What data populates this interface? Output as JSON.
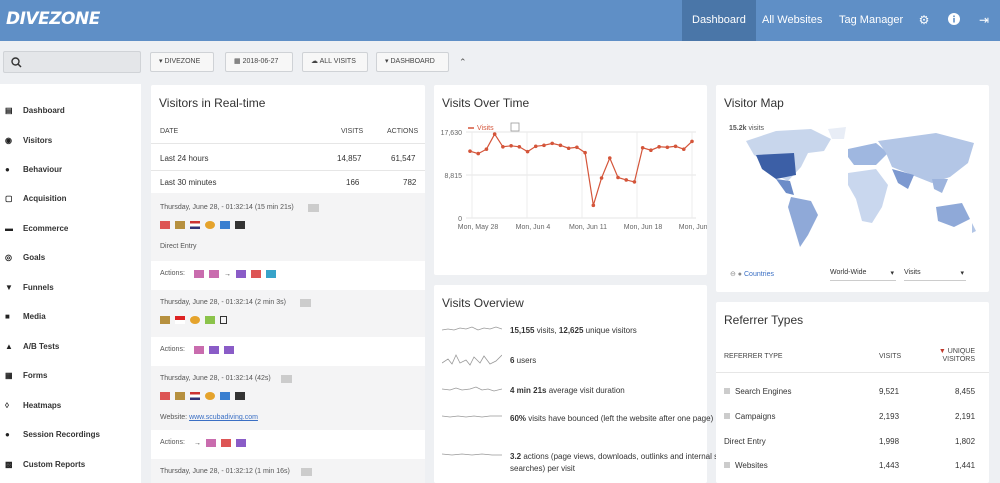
{
  "top": {
    "logo": "DIVEZONE",
    "nav": [
      "Dashboard",
      "All Websites",
      "Tag Manager"
    ],
    "icons": [
      "gear-icon",
      "info-icon",
      "logout-icon"
    ]
  },
  "filters": {
    "site": "DIVEZONE",
    "date": "2018-06-27",
    "segment": "ALL VISITS",
    "view": "DASHBOARD"
  },
  "sidebar": [
    "Dashboard",
    "Visitors",
    "Behaviour",
    "Acquisition",
    "Ecommerce",
    "Goals",
    "Funnels",
    "Media",
    "A/B Tests",
    "Forms",
    "Heatmaps",
    "Session Recordings",
    "Custom Reports"
  ],
  "realtime": {
    "title": "Visitors in Real-time",
    "h_date": "DATE",
    "h_visits": "VISITS",
    "h_actions": "ACTIONS",
    "rows": [
      {
        "date": "Last 24 hours",
        "visits": "14,857",
        "actions": "61,547"
      },
      {
        "date": "Last 30 minutes",
        "visits": "166",
        "actions": "782"
      }
    ],
    "visits": [
      {
        "time": "Thursday, June 28, - 01:32:14 (15 min 21s)",
        "ref": "Direct Entry",
        "actions": "Actions:"
      },
      {
        "time": "Thursday, June 28, - 01:32:14 (2 min 3s)",
        "actions": "Actions:"
      },
      {
        "time": "Thursday, June 28, - 01:32:14 (42s)",
        "ref_prefix": "Website:",
        "ref_link": "www.scubadiving.com",
        "actions": "Actions:"
      },
      {
        "time": "Thursday, June 28, - 01:32:12 (1 min 16s)"
      }
    ]
  },
  "vot": {
    "title": "Visits Over Time",
    "legend": "Visits"
  },
  "chart_data": {
    "type": "line",
    "title": "Visits Over Time",
    "series": [
      {
        "name": "Visits",
        "values": [
          13700,
          13200,
          14100,
          17200,
          14600,
          14800,
          14600,
          13600,
          14700,
          14900,
          15300,
          14900,
          14300,
          14500,
          13400,
          2600,
          8200,
          12300,
          8300,
          7800,
          7400,
          14400,
          13900,
          14600,
          14500,
          14700,
          14100,
          15700
        ]
      }
    ],
    "x_ticks": [
      "Mon, May 28",
      "Mon, Jun 4",
      "Mon, Jun 11",
      "Mon, Jun 18",
      "Mon, Jun 25"
    ],
    "y_ticks": [
      "17,630",
      "8,815",
      "0"
    ],
    "ylim": [
      0,
      17630
    ],
    "grid": true
  },
  "map": {
    "title": "Visitor Map",
    "visits_label": "15.2k",
    "visits_suffix": "visits",
    "countries": "Countries",
    "scope": "World-Wide",
    "metric": "Visits"
  },
  "overview": {
    "title": "Visits Overview",
    "items": [
      {
        "b1": "15,155",
        "t1": " visits, ",
        "b2": "12,625",
        "t2": " unique visitors"
      },
      {
        "b1": "6",
        "t1": " users"
      },
      {
        "b1": "4 min 21s",
        "t1": " average visit duration"
      },
      {
        "b1": "60%",
        "t1": " visits have bounced (left the website after one page)"
      },
      {
        "b1": "3.2",
        "t1": " actions (page views, downloads, outlinks and internal site searches) per visit"
      }
    ]
  },
  "referrers": {
    "title": "Referrer Types",
    "h_type": "REFERRER TYPE",
    "h_visits": "VISITS",
    "h_unique": "UNIQUE VISITORS",
    "rows": [
      {
        "name": "Search Engines",
        "visits": "9,521",
        "unique": "8,455"
      },
      {
        "name": "Campaigns",
        "visits": "2,193",
        "unique": "2,191"
      },
      {
        "name": "Direct Entry",
        "visits": "1,998",
        "unique": "1,802"
      },
      {
        "name": "Websites",
        "visits": "1,443",
        "unique": "1,441"
      }
    ]
  }
}
